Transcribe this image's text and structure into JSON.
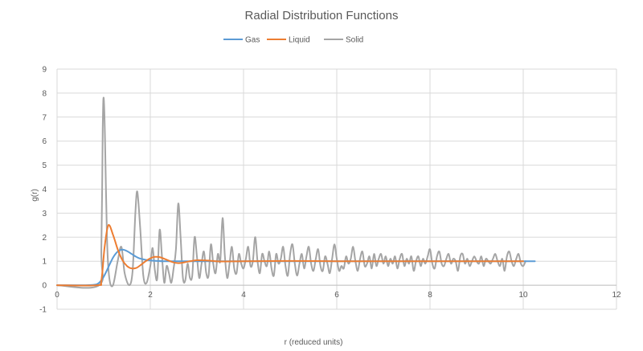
{
  "chart_data": {
    "type": "line",
    "title": "Radial Distribution Functions",
    "xlabel": "r (reduced units)",
    "ylabel": "g(r)",
    "xlim": [
      0,
      12
    ],
    "ylim": [
      -1,
      9
    ],
    "x_ticks": [
      0,
      2,
      4,
      6,
      8,
      10,
      12
    ],
    "y_ticks": [
      -1,
      0,
      1,
      2,
      3,
      4,
      5,
      6,
      7,
      8,
      9
    ],
    "grid": "vertical and horizontal major gridlines",
    "legend_position": "top",
    "series": [
      {
        "name": "Gas",
        "color": "#5B9BD5",
        "points": [
          [
            0,
            0
          ],
          [
            0.6,
            0
          ],
          [
            0.8,
            0.02
          ],
          [
            0.9,
            0.1
          ],
          [
            1.0,
            0.35
          ],
          [
            1.1,
            0.75
          ],
          [
            1.2,
            1.15
          ],
          [
            1.3,
            1.4
          ],
          [
            1.4,
            1.48
          ],
          [
            1.5,
            1.42
          ],
          [
            1.6,
            1.3
          ],
          [
            1.7,
            1.18
          ],
          [
            1.8,
            1.1
          ],
          [
            2.0,
            1.03
          ],
          [
            2.3,
            1.0
          ],
          [
            3.0,
            1.0
          ],
          [
            10.25,
            1.0
          ]
        ]
      },
      {
        "name": "Liquid",
        "color": "#ED7D31",
        "points": [
          [
            0,
            0
          ],
          [
            0.85,
            0
          ],
          [
            0.95,
            0.2
          ],
          [
            1.02,
            1.6
          ],
          [
            1.1,
            2.5
          ],
          [
            1.2,
            2.1
          ],
          [
            1.3,
            1.5
          ],
          [
            1.4,
            1.05
          ],
          [
            1.5,
            0.8
          ],
          [
            1.6,
            0.7
          ],
          [
            1.7,
            0.72
          ],
          [
            1.8,
            0.85
          ],
          [
            1.9,
            1.0
          ],
          [
            2.0,
            1.12
          ],
          [
            2.1,
            1.18
          ],
          [
            2.2,
            1.17
          ],
          [
            2.3,
            1.1
          ],
          [
            2.4,
            1.02
          ],
          [
            2.5,
            0.95
          ],
          [
            2.6,
            0.92
          ],
          [
            2.7,
            0.94
          ],
          [
            2.8,
            0.98
          ],
          [
            3.0,
            1.04
          ],
          [
            3.2,
            1.03
          ],
          [
            3.4,
            1.0
          ],
          [
            3.6,
            0.99
          ],
          [
            4.0,
            1.0
          ],
          [
            5.0,
            1.01
          ],
          [
            6.0,
            1.0
          ],
          [
            7.0,
            1.0
          ],
          [
            8.0,
            1.0
          ],
          [
            9.0,
            1.0
          ],
          [
            10.0,
            1.0
          ]
        ]
      },
      {
        "name": "Solid",
        "color": "#A5A5A5",
        "points": [
          [
            0,
            0
          ],
          [
            0.9,
            0
          ],
          [
            0.95,
            1.5
          ],
          [
            0.98,
            6.5
          ],
          [
            1.0,
            7.8
          ],
          [
            1.03,
            6.0
          ],
          [
            1.07,
            2.0
          ],
          [
            1.12,
            0.3
          ],
          [
            1.2,
            0.0
          ],
          [
            1.3,
            1.0
          ],
          [
            1.38,
            1.6
          ],
          [
            1.45,
            0.5
          ],
          [
            1.55,
            0.0
          ],
          [
            1.62,
            0.6
          ],
          [
            1.68,
            3.0
          ],
          [
            1.72,
            3.9
          ],
          [
            1.78,
            2.5
          ],
          [
            1.85,
            0.4
          ],
          [
            1.92,
            0.1
          ],
          [
            2.0,
            0.8
          ],
          [
            2.05,
            1.55
          ],
          [
            2.1,
            0.6
          ],
          [
            2.15,
            0.3
          ],
          [
            2.2,
            2.3
          ],
          [
            2.25,
            1.2
          ],
          [
            2.3,
            0.1
          ],
          [
            2.35,
            0.8
          ],
          [
            2.4,
            0.5
          ],
          [
            2.45,
            0.1
          ],
          [
            2.5,
            0.7
          ],
          [
            2.55,
            1.5
          ],
          [
            2.6,
            3.4
          ],
          [
            2.65,
            2.0
          ],
          [
            2.7,
            0.3
          ],
          [
            2.75,
            0.2
          ],
          [
            2.8,
            0.9
          ],
          [
            2.85,
            0.3
          ],
          [
            2.9,
            0.4
          ],
          [
            2.95,
            2.0
          ],
          [
            3.0,
            1.2
          ],
          [
            3.05,
            0.3
          ],
          [
            3.1,
            0.9
          ],
          [
            3.15,
            1.4
          ],
          [
            3.2,
            0.5
          ],
          [
            3.25,
            0.4
          ],
          [
            3.3,
            1.7
          ],
          [
            3.35,
            0.9
          ],
          [
            3.4,
            0.5
          ],
          [
            3.45,
            1.3
          ],
          [
            3.5,
            1.0
          ],
          [
            3.55,
            2.8
          ],
          [
            3.6,
            1.2
          ],
          [
            3.65,
            0.3
          ],
          [
            3.7,
            0.9
          ],
          [
            3.75,
            1.6
          ],
          [
            3.8,
            0.7
          ],
          [
            3.85,
            0.5
          ],
          [
            3.9,
            1.3
          ],
          [
            3.95,
            0.9
          ],
          [
            4.0,
            0.7
          ],
          [
            4.05,
            1.1
          ],
          [
            4.1,
            1.6
          ],
          [
            4.15,
            0.8
          ],
          [
            4.2,
            1.0
          ],
          [
            4.25,
            2.0
          ],
          [
            4.3,
            1.0
          ],
          [
            4.35,
            0.5
          ],
          [
            4.4,
            1.3
          ],
          [
            4.45,
            1.0
          ],
          [
            4.5,
            0.8
          ],
          [
            4.55,
            1.4
          ],
          [
            4.6,
            0.7
          ],
          [
            4.65,
            0.4
          ],
          [
            4.7,
            1.3
          ],
          [
            4.75,
            0.9
          ],
          [
            4.8,
            1.1
          ],
          [
            4.85,
            1.6
          ],
          [
            4.9,
            0.8
          ],
          [
            4.95,
            0.4
          ],
          [
            5.0,
            1.3
          ],
          [
            5.05,
            1.7
          ],
          [
            5.1,
            0.9
          ],
          [
            5.15,
            0.4
          ],
          [
            5.2,
            0.9
          ],
          [
            5.25,
            1.3
          ],
          [
            5.3,
            0.7
          ],
          [
            5.35,
            1.2
          ],
          [
            5.4,
            1.6
          ],
          [
            5.45,
            0.9
          ],
          [
            5.5,
            0.6
          ],
          [
            5.55,
            1.1
          ],
          [
            5.6,
            1.5
          ],
          [
            5.65,
            0.8
          ],
          [
            5.7,
            0.6
          ],
          [
            5.75,
            1.2
          ],
          [
            5.8,
            0.9
          ],
          [
            5.85,
            0.5
          ],
          [
            5.9,
            1.1
          ],
          [
            5.95,
            1.7
          ],
          [
            6.0,
            1.1
          ],
          [
            6.05,
            0.6
          ],
          [
            6.1,
            0.8
          ],
          [
            6.15,
            0.7
          ],
          [
            6.2,
            1.2
          ],
          [
            6.25,
            0.9
          ],
          [
            6.3,
            1.1
          ],
          [
            6.35,
            1.6
          ],
          [
            6.4,
            1.0
          ],
          [
            6.45,
            0.6
          ],
          [
            6.5,
            1.1
          ],
          [
            6.55,
            1.4
          ],
          [
            6.6,
            0.8
          ],
          [
            6.65,
            0.9
          ],
          [
            6.7,
            1.2
          ],
          [
            6.75,
            0.7
          ],
          [
            6.8,
            1.3
          ],
          [
            6.85,
            0.8
          ],
          [
            6.9,
            1.1
          ],
          [
            6.95,
            1.3
          ],
          [
            7.0,
            0.9
          ],
          [
            7.05,
            1.2
          ],
          [
            7.1,
            0.8
          ],
          [
            7.15,
            1.1
          ],
          [
            7.2,
            0.9
          ],
          [
            7.25,
            1.2
          ],
          [
            7.3,
            0.7
          ],
          [
            7.35,
            1.1
          ],
          [
            7.4,
            1.3
          ],
          [
            7.45,
            0.8
          ],
          [
            7.5,
            1.1
          ],
          [
            7.55,
            0.9
          ],
          [
            7.6,
            1.2
          ],
          [
            7.65,
            0.6
          ],
          [
            7.7,
            1.0
          ],
          [
            7.75,
            1.2
          ],
          [
            7.8,
            0.8
          ],
          [
            7.85,
            1.1
          ],
          [
            7.9,
            0.9
          ],
          [
            7.95,
            1.2
          ],
          [
            8.0,
            1.5
          ],
          [
            8.05,
            0.9
          ],
          [
            8.1,
            0.7
          ],
          [
            8.15,
            1.2
          ],
          [
            8.2,
            1.4
          ],
          [
            8.25,
            0.9
          ],
          [
            8.3,
            0.8
          ],
          [
            8.35,
            1.1
          ],
          [
            8.4,
            1.3
          ],
          [
            8.45,
            0.9
          ],
          [
            8.5,
            1.1
          ],
          [
            8.55,
            1.0
          ],
          [
            8.6,
            0.6
          ],
          [
            8.65,
            1.2
          ],
          [
            8.7,
            1.3
          ],
          [
            8.75,
            0.9
          ],
          [
            8.8,
            1.1
          ],
          [
            8.85,
            0.8
          ],
          [
            8.9,
            1.0
          ],
          [
            8.95,
            1.2
          ],
          [
            9.0,
            1.0
          ],
          [
            9.05,
            0.9
          ],
          [
            9.1,
            1.2
          ],
          [
            9.15,
            0.8
          ],
          [
            9.2,
            1.1
          ],
          [
            9.25,
            1.0
          ],
          [
            9.3,
            0.9
          ],
          [
            9.35,
            1.1
          ],
          [
            9.4,
            1.3
          ],
          [
            9.45,
            1.0
          ],
          [
            9.5,
            0.8
          ],
          [
            9.55,
            1.1
          ],
          [
            9.6,
            0.6
          ],
          [
            9.65,
            1.2
          ],
          [
            9.7,
            1.4
          ],
          [
            9.75,
            1.0
          ],
          [
            9.8,
            0.8
          ],
          [
            9.85,
            1.1
          ],
          [
            9.9,
            1.3
          ],
          [
            9.95,
            0.9
          ],
          [
            10.0,
            0.8
          ],
          [
            10.05,
            1.0
          ]
        ]
      }
    ]
  }
}
